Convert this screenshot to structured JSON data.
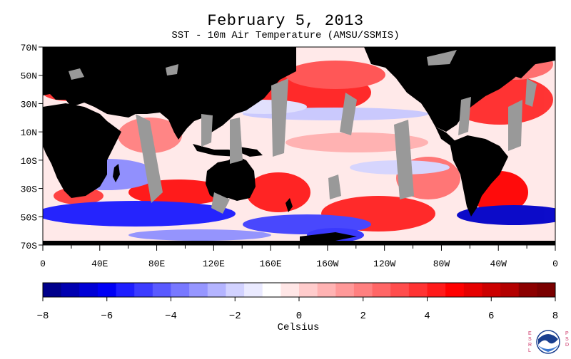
{
  "header": {
    "title": "February 5, 2013",
    "subtitle": "SST - 10m Air Temperature (AMSU/SSMIS)"
  },
  "map": {
    "lat_labels": [
      "70N",
      "50N",
      "30N",
      "10N",
      "10S",
      "30S",
      "50S",
      "70S"
    ],
    "lon_labels": [
      "0",
      "40E",
      "80E",
      "120E",
      "160E",
      "160W",
      "120W",
      "80W",
      "40W",
      "0"
    ]
  },
  "colorbar": {
    "units": "Celsius",
    "min": -8,
    "max": 8,
    "tick_labels": [
      "−8",
      "−6",
      "−4",
      "−2",
      "0",
      "2",
      "4",
      "6",
      "8"
    ],
    "colors": [
      "#00008b",
      "#0000b0",
      "#0000d6",
      "#0000f5",
      "#1e1eff",
      "#3c3cff",
      "#5a5aff",
      "#7878ff",
      "#9696ff",
      "#b4b4ff",
      "#d2d2ff",
      "#eaeaff",
      "#ffffff",
      "#ffe6e6",
      "#ffcccc",
      "#ffb3b3",
      "#ff9999",
      "#ff8080",
      "#ff6666",
      "#ff4d4d",
      "#ff3333",
      "#ff1a1a",
      "#ff0000",
      "#e60000",
      "#cc0000",
      "#b30000",
      "#8b0000",
      "#7a0000"
    ],
    "missing_color": "#999999",
    "land_color": "#000000"
  },
  "logo": {
    "icon": "noaa-logo",
    "left_text": "ESRL",
    "right_text": "PSD"
  }
}
